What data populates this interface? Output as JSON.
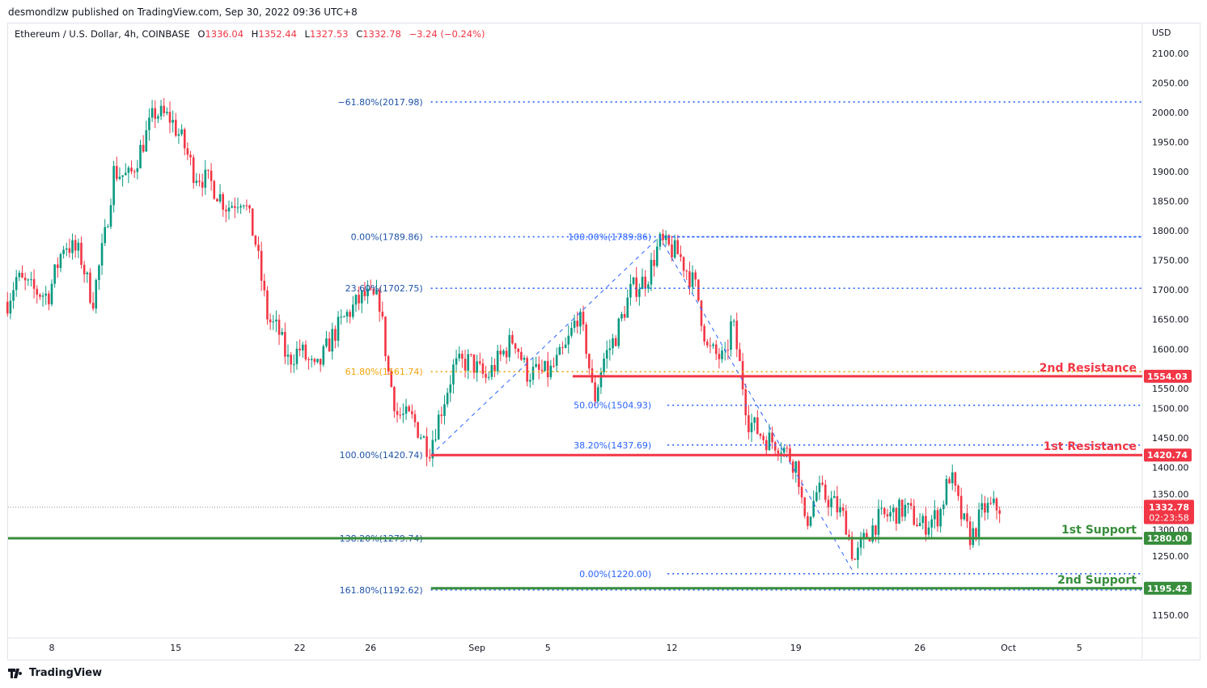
{
  "publish_line": "desmondlzw published on TradingView.com, Sep 30, 2022 09:36 UTC+8",
  "legend": {
    "symbol": "Ethereum / U.S. Dollar, 4h, COINBASE",
    "o_label": "O",
    "o": "1336.04",
    "h_label": "H",
    "h": "1352.44",
    "l_label": "L",
    "l": "1327.53",
    "c_label": "C",
    "c": "1332.78",
    "change": "−3.24 (−0.24%)"
  },
  "footer": {
    "logo_text": "TradingView"
  },
  "colors": {
    "up": "#089981",
    "down": "#f23645",
    "fib": "#2962ff",
    "fib_text": "#1e53a8",
    "orange": "#f0a30a",
    "resistance": "#f23645",
    "support": "#388e3c"
  },
  "chart_data": {
    "type": "candlestick",
    "currency": "USD",
    "ylim": [
      1120,
      2140
    ],
    "y_ticks": [
      "2100.00",
      "2050.00",
      "2000.00",
      "1950.00",
      "1900.00",
      "1850.00",
      "1800.00",
      "1750.00",
      "1700.00",
      "1650.00",
      "1600.00",
      "1550.00",
      "1500.00",
      "1450.00",
      "1400.00",
      "1350.00",
      "1300.00",
      "1250.00",
      "1150.00"
    ],
    "x_ticks": [
      {
        "label": "8",
        "day": 0
      },
      {
        "label": "15",
        "day": 7
      },
      {
        "label": "22",
        "day": 14
      },
      {
        "label": "26",
        "day": 18
      },
      {
        "label": "Sep",
        "day": 24
      },
      {
        "label": "5",
        "day": 28
      },
      {
        "label": "12",
        "day": 35
      },
      {
        "label": "19",
        "day": 42
      },
      {
        "label": "26",
        "day": 49
      },
      {
        "label": "Oct",
        "day": 54
      },
      {
        "label": "5",
        "day": 58
      }
    ],
    "x_unit": "days since Aug 8, 2022",
    "price_path": [
      [
        -2.5,
        1680
      ],
      [
        -2.0,
        1720
      ],
      [
        -1.1,
        1700
      ],
      [
        -0.2,
        1690
      ],
      [
        0.7,
        1780
      ],
      [
        1.6,
        1760
      ],
      [
        2.3,
        1680
      ],
      [
        3.0,
        1790
      ],
      [
        3.5,
        1900
      ],
      [
        4.4,
        1890
      ],
      [
        5.3,
        1960
      ],
      [
        5.8,
        2000
      ],
      [
        6.7,
        1990
      ],
      [
        7.4,
        1950
      ],
      [
        8.0,
        1900
      ],
      [
        9.0,
        1880
      ],
      [
        9.9,
        1840
      ],
      [
        10.8,
        1860
      ],
      [
        11.5,
        1780
      ],
      [
        12.2,
        1650
      ],
      [
        12.8,
        1630
      ],
      [
        13.3,
        1580
      ],
      [
        14.0,
        1600
      ],
      [
        14.9,
        1560
      ],
      [
        15.8,
        1620
      ],
      [
        16.7,
        1660
      ],
      [
        17.6,
        1690
      ],
      [
        18.5,
        1680
      ],
      [
        19.0,
        1560
      ],
      [
        19.5,
        1490
      ],
      [
        20.4,
        1480
      ],
      [
        21.3,
        1430
      ],
      [
        22.0,
        1500
      ],
      [
        22.7,
        1570
      ],
      [
        23.6,
        1580
      ],
      [
        24.5,
        1550
      ],
      [
        25.4,
        1590
      ],
      [
        26.1,
        1620
      ],
      [
        26.8,
        1560
      ],
      [
        28.1,
        1560
      ],
      [
        29.0,
        1600
      ],
      [
        29.7,
        1660
      ],
      [
        30.2,
        1600
      ],
      [
        30.6,
        1510
      ],
      [
        31.1,
        1580
      ],
      [
        31.8,
        1620
      ],
      [
        32.7,
        1700
      ],
      [
        33.6,
        1720
      ],
      [
        34.3,
        1780
      ],
      [
        35.4,
        1760
      ],
      [
        36.4,
        1700
      ],
      [
        37.0,
        1600
      ],
      [
        38.0,
        1580
      ],
      [
        38.4,
        1650
      ],
      [
        38.9,
        1560
      ],
      [
        39.3,
        1480
      ],
      [
        40.2,
        1450
      ],
      [
        41.1,
        1440
      ],
      [
        42.1,
        1400
      ],
      [
        42.5,
        1300
      ],
      [
        43.2,
        1360
      ],
      [
        44.1,
        1340
      ],
      [
        44.8,
        1310
      ],
      [
        45.3,
        1240
      ],
      [
        45.9,
        1280
      ],
      [
        46.6,
        1310
      ],
      [
        47.3,
        1320
      ],
      [
        48.2,
        1330
      ],
      [
        49.1,
        1300
      ],
      [
        50.1,
        1320
      ],
      [
        50.7,
        1390
      ],
      [
        51.4,
        1310
      ],
      [
        51.9,
        1280
      ],
      [
        52.6,
        1330
      ],
      [
        53.5,
        1332.78
      ]
    ],
    "last_price": {
      "value": 1332.78,
      "label": "1332.78",
      "countdown": "02:23:58"
    },
    "fib_retracement_1": {
      "from": {
        "day": 21.4,
        "price": 1420.74
      },
      "to": {
        "day": 34.3,
        "price": 1789.86
      },
      "levels": [
        {
          "label": "−61.80%(2017.98)",
          "price": 2017.98,
          "color": "fib"
        },
        {
          "label": "0.00%(1789.86)",
          "price": 1789.86,
          "color": "fib"
        },
        {
          "label": "23.60%(1702.75)",
          "price": 1702.75,
          "color": "fib"
        },
        {
          "label": "61.80%(1561.74)",
          "price": 1561.74,
          "color": "orange"
        },
        {
          "label": "100.00%(1420.74)",
          "price": 1420.74,
          "color": "fib"
        },
        {
          "label": "138.20%(1279.74)",
          "price": 1279.74,
          "color": "fib"
        },
        {
          "label": "161.80%(1192.62)",
          "price": 1192.62,
          "color": "fib"
        }
      ]
    },
    "fib_retracement_2": {
      "from": {
        "day": 34.3,
        "price": 1789.86
      },
      "to": {
        "day": 45.3,
        "price": 1220.0
      },
      "levels": [
        {
          "label": "100.00%(1789.86)",
          "price": 1789.86
        },
        {
          "label": "50.00%(1504.93)",
          "price": 1504.93
        },
        {
          "label": "38.20%(1437.69)",
          "price": 1437.69
        },
        {
          "label": "0.00%(1220.00)",
          "price": 1220.0
        }
      ]
    },
    "horizontal_levels": [
      {
        "name": "2nd Resistance",
        "price": 1554.03,
        "label": "1554.03",
        "type": "resistance",
        "start_day": 29.4
      },
      {
        "name": "1st Resistance",
        "price": 1420.74,
        "label": "1420.74",
        "type": "resistance",
        "start_day": 21.4
      },
      {
        "name": "1st Support",
        "price": 1280.0,
        "label": "1280.00",
        "type": "support",
        "start_day": -2.5
      },
      {
        "name": "2nd Support",
        "price": 1195.42,
        "label": "1195.42",
        "type": "support",
        "start_day": 21.4
      }
    ]
  }
}
